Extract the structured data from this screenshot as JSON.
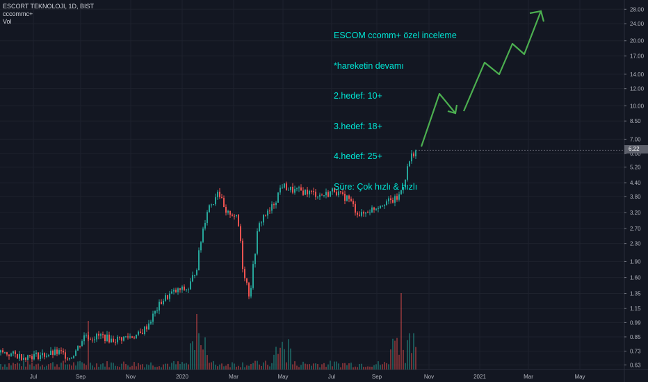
{
  "legend": {
    "symbol": "ESCORT TEKNOLOJI, 1D, BIST",
    "indicator": "cccommc+",
    "volume": "Vol"
  },
  "annotation": {
    "lines": [
      "ESCOM ccomm+ özel inceleme",
      "*hareketin devamı",
      "2.hedef: 10+",
      "3.hedef: 18+",
      "4.hedef: 25+",
      "Süre: Çok hızlı & hızlı"
    ]
  },
  "last_price_label": "6.22",
  "colors": {
    "background": "#131722",
    "up": "#26a69a",
    "down": "#ef5350",
    "grid": "#1e222d",
    "annotation": "#00e5d4",
    "arrow": "#4caf50"
  },
  "chart_data": {
    "type": "candlestick",
    "title": "ESCORT TEKNOLOJI, 1D, BIST",
    "y_scale": "log",
    "y_ticks": [
      "28.00",
      "24.00",
      "20.00",
      "17.00",
      "14.00",
      "12.00",
      "10.00",
      "8.50",
      "7.00",
      "6.00",
      "5.20",
      "4.40",
      "3.80",
      "3.20",
      "2.70",
      "2.30",
      "1.90",
      "1.60",
      "1.35",
      "1.15",
      "0.99",
      "0.85",
      "0.73",
      "0.63"
    ],
    "x_ticks": [
      "Jul",
      "Sep",
      "Nov",
      "2020",
      "Mar",
      "May",
      "Jul",
      "Sep",
      "Nov",
      "2021",
      "Mar",
      "May"
    ],
    "ylim": [
      0.6,
      30
    ],
    "price_series": [
      {
        "x": "2019-06",
        "y": 0.71
      },
      {
        "x": "2019-07",
        "y": 0.69
      },
      {
        "x": "2019-08",
        "y": 0.72
      },
      {
        "x": "2019-09",
        "y": 0.89
      },
      {
        "x": "2019-10",
        "y": 0.79
      },
      {
        "x": "2019-11",
        "y": 0.85
      },
      {
        "x": "2019-12",
        "y": 1.0
      },
      {
        "x": "2019-12b",
        "y": 1.45
      },
      {
        "x": "2020-01",
        "y": 4.0
      },
      {
        "x": "2020-02",
        "y": 3.0
      },
      {
        "x": "2020-03",
        "y": 1.3
      },
      {
        "x": "2020-04",
        "y": 3.2
      },
      {
        "x": "2020-05",
        "y": 4.0
      },
      {
        "x": "2020-06",
        "y": 3.9
      },
      {
        "x": "2020-07",
        "y": 4.1
      },
      {
        "x": "2020-08",
        "y": 3.3
      },
      {
        "x": "2020-09",
        "y": 3.8
      },
      {
        "x": "2020-10",
        "y": 6.3
      }
    ],
    "last_price": 6.22,
    "projection_arrows": [
      {
        "from": "2020-10",
        "to_price": 11.0,
        "then": 8.9
      },
      {
        "to_price": 16.0,
        "then": 13.5,
        "then2": 19.0,
        "then3": 17.0,
        "end": 27.0
      }
    ],
    "grid": true
  }
}
